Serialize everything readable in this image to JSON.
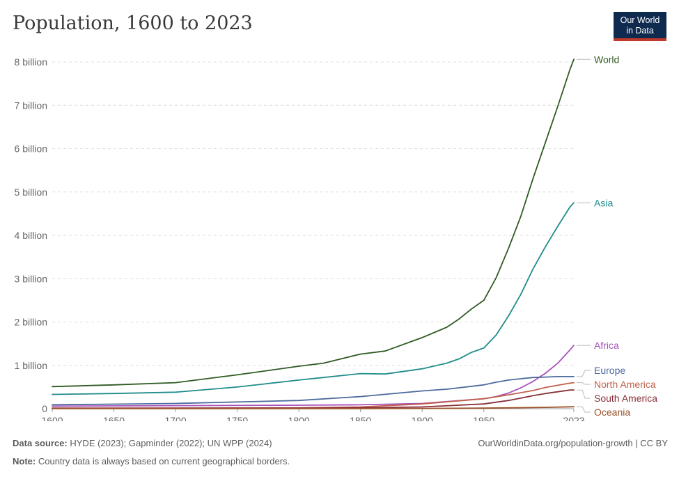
{
  "title": "Population, 1600 to 2023",
  "logo": {
    "line1": "Our World",
    "line2": "in Data"
  },
  "footer": {
    "source_label": "Data source:",
    "source_text": "HYDE (2023); Gapminder (2022); UN WPP (2024)",
    "note_label": "Note:",
    "note_text": "Country data is always based on current geographical borders.",
    "credit": "OurWorldinData.org/population-growth | CC BY"
  },
  "chart_data": {
    "type": "line",
    "title": "Population, 1600 to 2023",
    "xlabel": "",
    "ylabel": "",
    "xlim": [
      1600,
      2023
    ],
    "ylim": [
      0,
      8
    ],
    "x_ticks": [
      {
        "value": 1600,
        "label": "1600"
      },
      {
        "value": 1650,
        "label": "1650"
      },
      {
        "value": 1700,
        "label": "1700"
      },
      {
        "value": 1750,
        "label": "1750"
      },
      {
        "value": 1800,
        "label": "1800"
      },
      {
        "value": 1850,
        "label": "1850"
      },
      {
        "value": 1900,
        "label": "1900"
      },
      {
        "value": 1950,
        "label": "1950"
      },
      {
        "value": 2023,
        "label": "2023"
      }
    ],
    "y_ticks": [
      {
        "value": 0,
        "label": "0"
      },
      {
        "value": 1,
        "label": "1 billion"
      },
      {
        "value": 2,
        "label": "2 billion"
      },
      {
        "value": 3,
        "label": "3 billion"
      },
      {
        "value": 4,
        "label": "4 billion"
      },
      {
        "value": 5,
        "label": "5 billion"
      },
      {
        "value": 6,
        "label": "6 billion"
      },
      {
        "value": 7,
        "label": "7 billion"
      },
      {
        "value": 8,
        "label": "8 billion"
      }
    ],
    "grid": true,
    "legend": "right-end-labels",
    "series": [
      {
        "name": "World",
        "color": "#2f5a23",
        "points": [
          [
            1600,
            0.51
          ],
          [
            1650,
            0.55
          ],
          [
            1700,
            0.6
          ],
          [
            1750,
            0.78
          ],
          [
            1800,
            0.98
          ],
          [
            1820,
            1.05
          ],
          [
            1850,
            1.26
          ],
          [
            1870,
            1.33
          ],
          [
            1900,
            1.64
          ],
          [
            1920,
            1.88
          ],
          [
            1930,
            2.07
          ],
          [
            1940,
            2.3
          ],
          [
            1950,
            2.5
          ],
          [
            1960,
            3.02
          ],
          [
            1970,
            3.7
          ],
          [
            1980,
            4.44
          ],
          [
            1990,
            5.32
          ],
          [
            2000,
            6.15
          ],
          [
            2010,
            6.98
          ],
          [
            2020,
            7.84
          ],
          [
            2023,
            8.06
          ]
        ]
      },
      {
        "name": "Asia",
        "color": "#1e8c8a",
        "points": [
          [
            1600,
            0.33
          ],
          [
            1650,
            0.35
          ],
          [
            1700,
            0.38
          ],
          [
            1750,
            0.5
          ],
          [
            1800,
            0.66
          ],
          [
            1820,
            0.72
          ],
          [
            1850,
            0.81
          ],
          [
            1870,
            0.8
          ],
          [
            1900,
            0.92
          ],
          [
            1920,
            1.05
          ],
          [
            1930,
            1.15
          ],
          [
            1940,
            1.3
          ],
          [
            1950,
            1.4
          ],
          [
            1960,
            1.7
          ],
          [
            1970,
            2.14
          ],
          [
            1980,
            2.64
          ],
          [
            1990,
            3.23
          ],
          [
            2000,
            3.74
          ],
          [
            2010,
            4.21
          ],
          [
            2020,
            4.66
          ],
          [
            2023,
            4.75
          ]
        ]
      },
      {
        "name": "Africa",
        "color": "#a652ba",
        "points": [
          [
            1600,
            0.06
          ],
          [
            1700,
            0.07
          ],
          [
            1800,
            0.08
          ],
          [
            1850,
            0.09
          ],
          [
            1900,
            0.12
          ],
          [
            1950,
            0.23
          ],
          [
            1960,
            0.28
          ],
          [
            1970,
            0.36
          ],
          [
            1980,
            0.48
          ],
          [
            1990,
            0.63
          ],
          [
            2000,
            0.82
          ],
          [
            2010,
            1.05
          ],
          [
            2020,
            1.36
          ],
          [
            2023,
            1.46
          ]
        ]
      },
      {
        "name": "Europe",
        "color": "#4c6a9c",
        "points": [
          [
            1600,
            0.09
          ],
          [
            1700,
            0.12
          ],
          [
            1800,
            0.19
          ],
          [
            1850,
            0.28
          ],
          [
            1900,
            0.41
          ],
          [
            1920,
            0.45
          ],
          [
            1950,
            0.55
          ],
          [
            1960,
            0.61
          ],
          [
            1970,
            0.66
          ],
          [
            1980,
            0.69
          ],
          [
            1990,
            0.72
          ],
          [
            2000,
            0.73
          ],
          [
            2010,
            0.74
          ],
          [
            2023,
            0.74
          ]
        ]
      },
      {
        "name": "North America",
        "color": "#c15f4b",
        "points": [
          [
            1600,
            0.015
          ],
          [
            1700,
            0.015
          ],
          [
            1800,
            0.02
          ],
          [
            1850,
            0.04
          ],
          [
            1900,
            0.11
          ],
          [
            1950,
            0.23
          ],
          [
            1970,
            0.32
          ],
          [
            1990,
            0.42
          ],
          [
            2000,
            0.49
          ],
          [
            2010,
            0.54
          ],
          [
            2020,
            0.59
          ],
          [
            2023,
            0.6
          ]
        ]
      },
      {
        "name": "South America",
        "color": "#883039",
        "points": [
          [
            1600,
            0.01
          ],
          [
            1700,
            0.012
          ],
          [
            1800,
            0.014
          ],
          [
            1850,
            0.02
          ],
          [
            1900,
            0.04
          ],
          [
            1950,
            0.11
          ],
          [
            1970,
            0.19
          ],
          [
            1990,
            0.3
          ],
          [
            2000,
            0.35
          ],
          [
            2010,
            0.39
          ],
          [
            2020,
            0.43
          ],
          [
            2023,
            0.43
          ]
        ]
      },
      {
        "name": "Oceania",
        "color": "#9a5129",
        "points": [
          [
            1600,
            0.002
          ],
          [
            1800,
            0.002
          ],
          [
            1850,
            0.002
          ],
          [
            1900,
            0.006
          ],
          [
            1950,
            0.013
          ],
          [
            2000,
            0.031
          ],
          [
            2023,
            0.045
          ]
        ]
      }
    ]
  }
}
